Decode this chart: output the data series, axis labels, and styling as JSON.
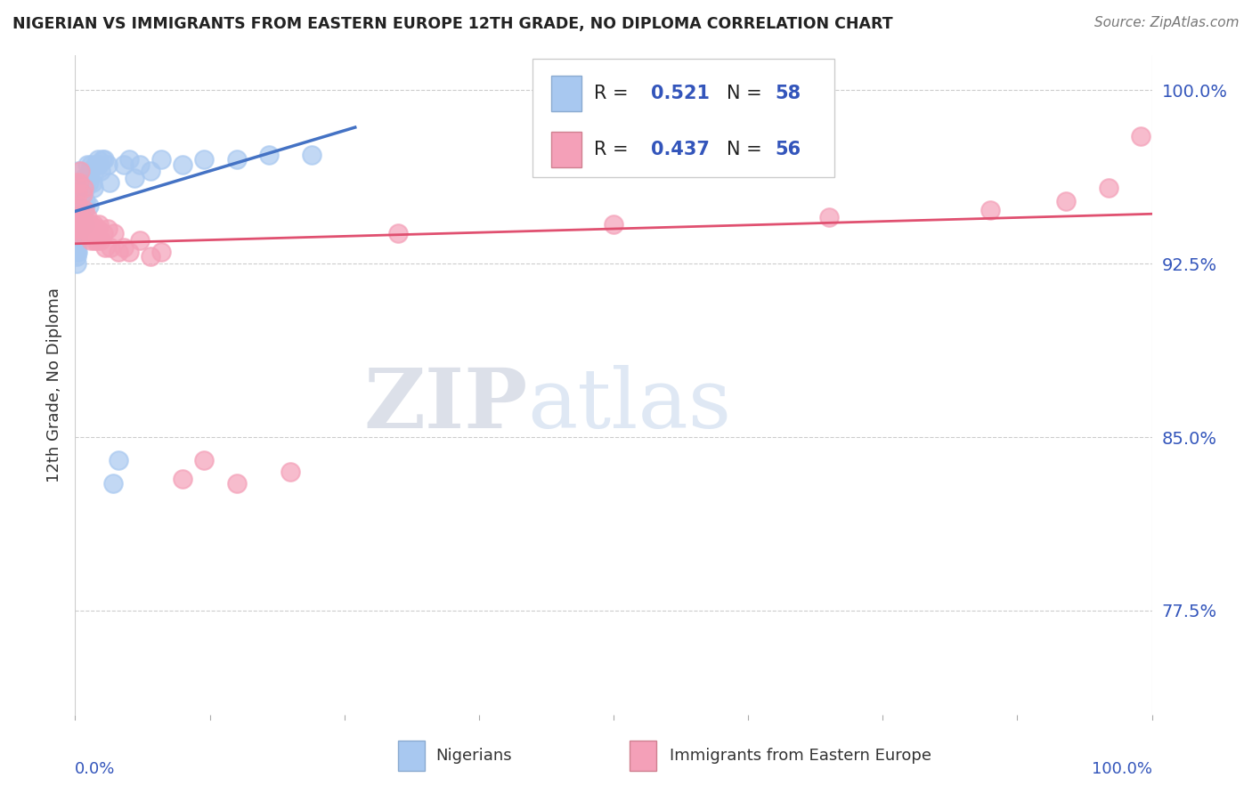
{
  "title": "NIGERIAN VS IMMIGRANTS FROM EASTERN EUROPE 12TH GRADE, NO DIPLOMA CORRELATION CHART",
  "source": "Source: ZipAtlas.com",
  "ylabel": "12th Grade, No Diploma",
  "ytick_labels": [
    "100.0%",
    "92.5%",
    "85.0%",
    "77.5%"
  ],
  "ytick_values": [
    1.0,
    0.925,
    0.85,
    0.775
  ],
  "xlim": [
    0.0,
    1.0
  ],
  "ylim": [
    0.73,
    1.015
  ],
  "color_blue": "#A8C8F0",
  "color_pink": "#F4A0B8",
  "color_blue_line": "#4472C4",
  "color_pink_line": "#E05070",
  "color_blue_text": "#3355BB",
  "watermark_zip": "ZIP",
  "watermark_atlas": "atlas",
  "legend_entries": [
    {
      "R": "0.521",
      "N": "58",
      "color": "#A8C8F0"
    },
    {
      "R": "0.437",
      "N": "56",
      "color": "#F4A0B8"
    }
  ],
  "blue_x": [
    0.001,
    0.001,
    0.001,
    0.001,
    0.001,
    0.002,
    0.002,
    0.002,
    0.002,
    0.003,
    0.003,
    0.003,
    0.004,
    0.004,
    0.004,
    0.005,
    0.005,
    0.006,
    0.006,
    0.006,
    0.007,
    0.007,
    0.008,
    0.008,
    0.009,
    0.009,
    0.01,
    0.01,
    0.011,
    0.012,
    0.013,
    0.013,
    0.014,
    0.015,
    0.016,
    0.017,
    0.018,
    0.019,
    0.021,
    0.022,
    0.024,
    0.025,
    0.027,
    0.03,
    0.032,
    0.035,
    0.04,
    0.045,
    0.05,
    0.055,
    0.06,
    0.07,
    0.08,
    0.1,
    0.12,
    0.15,
    0.18,
    0.22
  ],
  "blue_y": [
    0.928,
    0.932,
    0.935,
    0.93,
    0.925,
    0.938,
    0.93,
    0.935,
    0.94,
    0.945,
    0.94,
    0.965,
    0.96,
    0.945,
    0.96,
    0.955,
    0.94,
    0.958,
    0.948,
    0.942,
    0.955,
    0.948,
    0.958,
    0.962,
    0.95,
    0.942,
    0.958,
    0.952,
    0.968,
    0.962,
    0.96,
    0.95,
    0.965,
    0.968,
    0.96,
    0.958,
    0.965,
    0.968,
    0.97,
    0.968,
    0.965,
    0.97,
    0.97,
    0.968,
    0.96,
    0.83,
    0.84,
    0.968,
    0.97,
    0.962,
    0.968,
    0.965,
    0.97,
    0.968,
    0.97,
    0.97,
    0.972,
    0.972
  ],
  "pink_x": [
    0.001,
    0.001,
    0.001,
    0.002,
    0.002,
    0.002,
    0.003,
    0.003,
    0.004,
    0.004,
    0.005,
    0.005,
    0.006,
    0.006,
    0.007,
    0.007,
    0.008,
    0.008,
    0.009,
    0.009,
    0.01,
    0.011,
    0.012,
    0.013,
    0.014,
    0.015,
    0.016,
    0.017,
    0.018,
    0.019,
    0.02,
    0.021,
    0.022,
    0.024,
    0.026,
    0.028,
    0.03,
    0.033,
    0.036,
    0.04,
    0.045,
    0.05,
    0.06,
    0.07,
    0.08,
    0.1,
    0.12,
    0.15,
    0.2,
    0.3,
    0.5,
    0.7,
    0.85,
    0.92,
    0.96,
    0.99
  ],
  "pink_y": [
    0.94,
    0.945,
    0.96,
    0.938,
    0.955,
    0.948,
    0.94,
    0.95,
    0.945,
    0.96,
    0.942,
    0.965,
    0.938,
    0.945,
    0.94,
    0.955,
    0.942,
    0.958,
    0.94,
    0.948,
    0.942,
    0.945,
    0.94,
    0.938,
    0.942,
    0.935,
    0.94,
    0.942,
    0.935,
    0.94,
    0.935,
    0.94,
    0.942,
    0.935,
    0.938,
    0.932,
    0.94,
    0.932,
    0.938,
    0.93,
    0.932,
    0.93,
    0.935,
    0.928,
    0.93,
    0.832,
    0.84,
    0.83,
    0.835,
    0.938,
    0.942,
    0.945,
    0.948,
    0.952,
    0.958,
    0.98
  ]
}
